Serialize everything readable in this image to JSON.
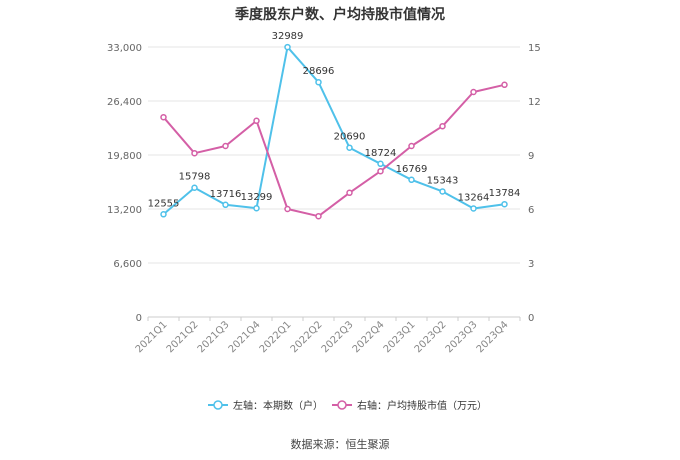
{
  "chart_data": {
    "type": "line",
    "title": "季度股东户数、户均持股市值情况",
    "categories": [
      "2021Q1",
      "2021Q2",
      "2021Q3",
      "2021Q4",
      "2022Q1",
      "2022Q2",
      "2022Q3",
      "2022Q4",
      "2023Q1",
      "2023Q2",
      "2023Q3",
      "2023Q4"
    ],
    "series": [
      {
        "name": "左轴：本期数（户）",
        "axis": "left",
        "color": "#4fc1ea",
        "values": [
          12555,
          15798,
          13716,
          13299,
          32989,
          28696,
          20690,
          18724,
          16769,
          15343,
          13264,
          13784
        ],
        "data_labels": [
          "12555",
          "15798",
          "13716",
          "13299",
          "32989",
          "28696",
          "20690",
          "18724",
          "16769",
          "15343",
          "13264",
          "13784"
        ]
      },
      {
        "name": "右轴：户均持股市值（万元）",
        "axis": "right",
        "color": "#d45fa6",
        "values": [
          11.1,
          9.1,
          9.5,
          10.9,
          6.0,
          5.6,
          6.9,
          8.1,
          9.5,
          10.6,
          12.5,
          12.9
        ]
      }
    ],
    "left_axis": {
      "ylim": [
        0,
        33000
      ],
      "ticks": [
        0,
        6600,
        13200,
        19800,
        26400,
        33000
      ],
      "tick_labels": [
        "0",
        "6,600",
        "13,200",
        "19,800",
        "26,400",
        "33,000"
      ]
    },
    "right_axis": {
      "ylim": [
        0,
        15
      ],
      "ticks": [
        0,
        3,
        6,
        9,
        12,
        15
      ],
      "tick_labels": [
        "0",
        "3",
        "6",
        "9",
        "12",
        "15"
      ]
    },
    "grid": true,
    "legend_position": "bottom"
  },
  "source_text": "数据来源：恒生聚源"
}
